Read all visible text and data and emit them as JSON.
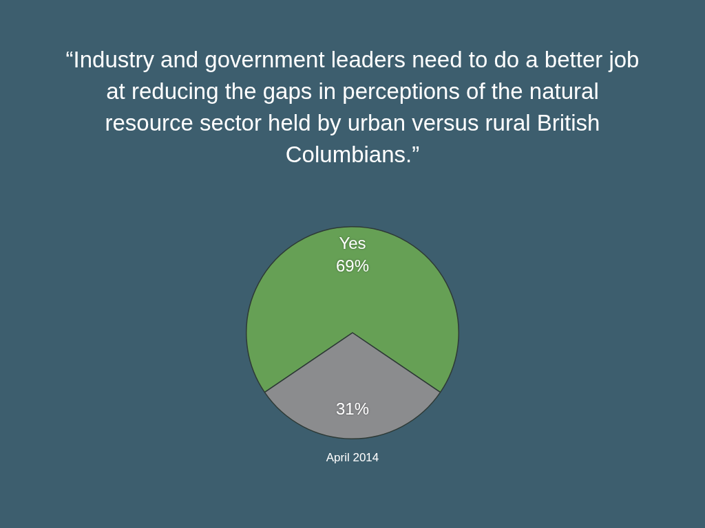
{
  "chart_data": {
    "type": "pie",
    "title": "“Industry and government leaders need to do a better job at reducing the gaps in perceptions of the natural resource sector held by urban versus rural British Columbians.”",
    "categories": [
      "Yes",
      null
    ],
    "values": [
      69,
      31
    ],
    "value_labels": [
      "69%",
      "31%"
    ],
    "colors": [
      "#66a055",
      "#8b8c8e"
    ],
    "annotations": [
      "April 2014"
    ]
  }
}
